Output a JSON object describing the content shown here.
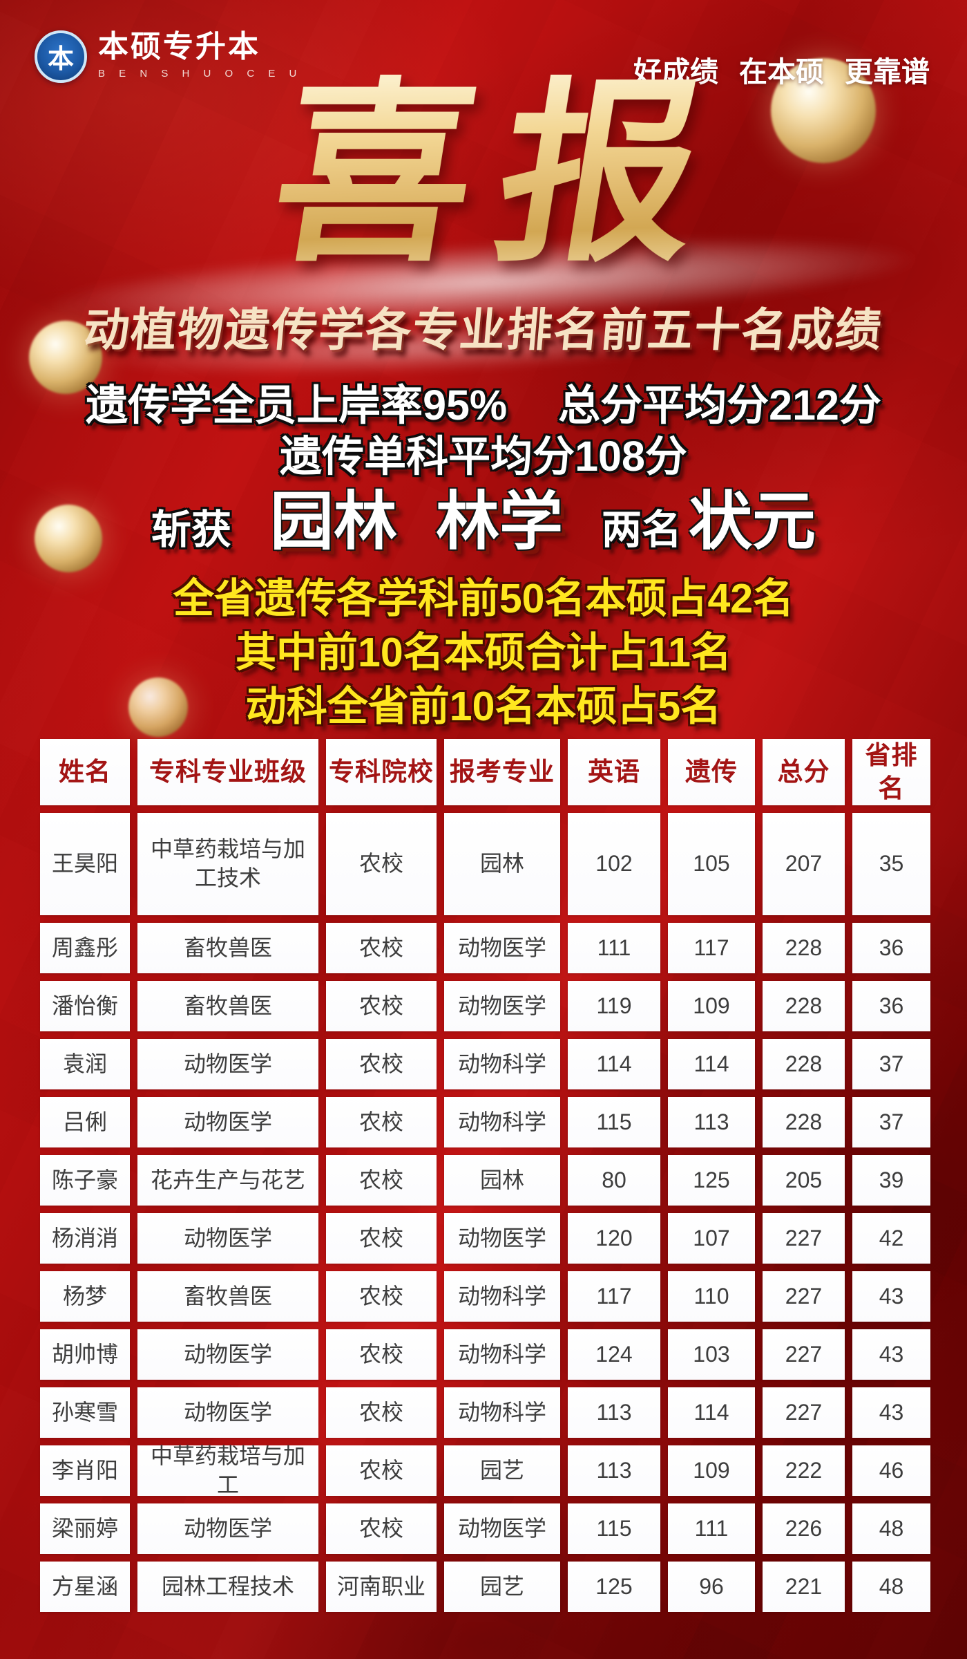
{
  "brand": {
    "logo_char": "本",
    "name": "本硕专升本",
    "name_en": "B E N S H U O C E U"
  },
  "slogan": {
    "parts": [
      "好成绩",
      "在本硕",
      "更靠谱"
    ]
  },
  "title": "喜报",
  "subtitle": "动植物遗传学各专业排名前五十名成绩",
  "stats": {
    "line1a": "遗传学全员上岸率95%",
    "line1b": "总分平均分212分",
    "line2": "遗传单科平均分108分",
    "achievement": {
      "prefix": "斩获",
      "major1": "园林",
      "major2": "林学",
      "count_label": "两名",
      "champion_label": "状元"
    },
    "highlights": [
      "全省遗传各学科前50名本硕占42名",
      "其中前10名本硕合计占11名",
      "动科全省前10名本硕占5名"
    ]
  },
  "table": {
    "headers": [
      "姓名",
      "专科专业班级",
      "专科院校",
      "报考专业",
      "英语",
      "遗传",
      "总分",
      "省排名"
    ],
    "rows": [
      [
        "王昊阳",
        "中草药栽培与加工技术",
        "农校",
        "园林",
        "102",
        "105",
        "207",
        "35"
      ],
      [
        "周鑫彤",
        "畜牧兽医",
        "农校",
        "动物医学",
        "111",
        "117",
        "228",
        "36"
      ],
      [
        "潘怡衡",
        "畜牧兽医",
        "农校",
        "动物医学",
        "119",
        "109",
        "228",
        "36"
      ],
      [
        "袁润",
        "动物医学",
        "农校",
        "动物科学",
        "114",
        "114",
        "228",
        "37"
      ],
      [
        "吕俐",
        "动物医学",
        "农校",
        "动物科学",
        "115",
        "113",
        "228",
        "37"
      ],
      [
        "陈子豪",
        "花卉生产与花艺",
        "农校",
        "园林",
        "80",
        "125",
        "205",
        "39"
      ],
      [
        "杨消消",
        "动物医学",
        "农校",
        "动物医学",
        "120",
        "107",
        "227",
        "42"
      ],
      [
        "杨梦",
        "畜牧兽医",
        "农校",
        "动物科学",
        "117",
        "110",
        "227",
        "43"
      ],
      [
        "胡帅博",
        "动物医学",
        "农校",
        "动物科学",
        "124",
        "103",
        "227",
        "43"
      ],
      [
        "孙寒雪",
        "动物医学",
        "农校",
        "动物科学",
        "113",
        "114",
        "227",
        "43"
      ],
      [
        "李肖阳",
        "中草药栽培与加工",
        "农校",
        "园艺",
        "113",
        "109",
        "222",
        "46"
      ],
      [
        "梁丽婷",
        "动物医学",
        "农校",
        "动物医学",
        "115",
        "111",
        "226",
        "48"
      ],
      [
        "方星涵",
        "园林工程技术",
        "河南职业",
        "园艺",
        "125",
        "96",
        "221",
        "48"
      ]
    ]
  },
  "colors": {
    "background_red": "#b00e0e",
    "title_gold": "#e9c87e",
    "highlight_yellow": "#ffe71f",
    "header_text": "#a31414",
    "cell_text": "#3d3d3d",
    "logo_blue": "#1c59a5"
  }
}
